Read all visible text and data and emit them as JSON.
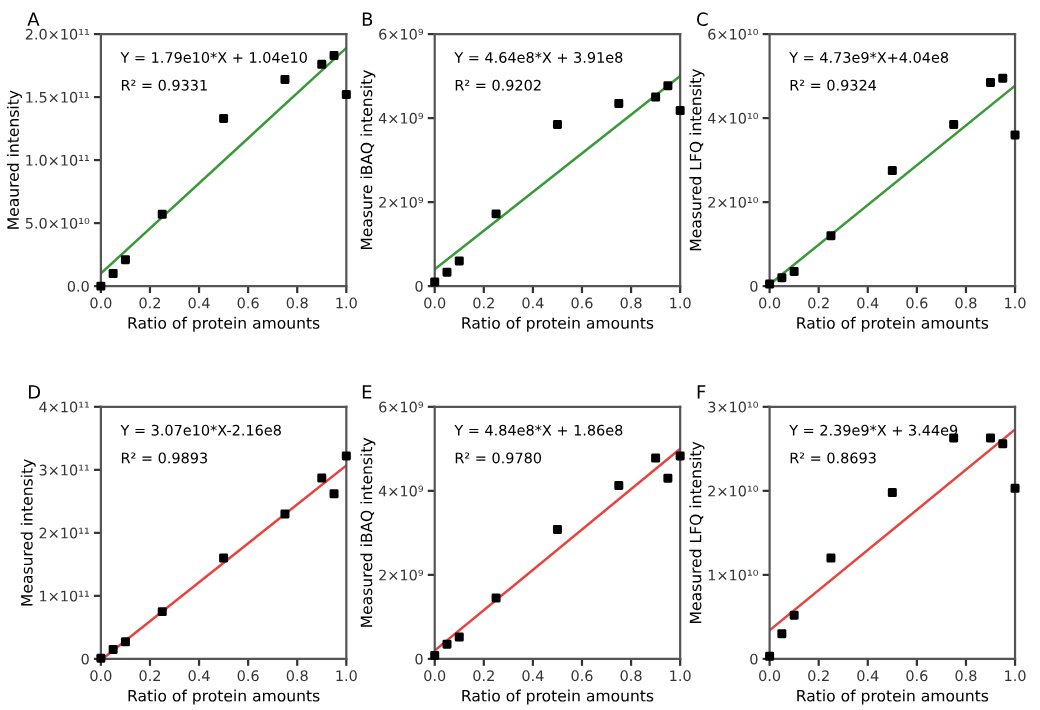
{
  "chart_data": [
    {
      "type": "scatter",
      "title": "A",
      "xlabel": "Ratio of protein amounts",
      "ylabel": "Meaured intensity",
      "annotations": [
        "Y = 1.79e10*X + 1.04e10",
        "R² = 0.9331"
      ],
      "grid": false,
      "legend": false,
      "x": [
        0,
        0.05,
        0.1,
        0.25,
        0.5,
        0.75,
        0.9,
        0.95,
        1.0
      ],
      "series": [
        {
          "marker": "square",
          "color": "#000000",
          "values": [
            0,
            10000000000.0,
            21000000000.0,
            57000000000.0,
            133000000000.0,
            164000000000.0,
            176000000000.0,
            183000000000.0,
            152000000000.0
          ]
        },
        {
          "type": "line",
          "color": "#3a9a3a",
          "x": [
            0,
            1
          ],
          "values": [
            10000000000.0,
            189000000000.0
          ]
        }
      ],
      "xlim": [
        0,
        1
      ],
      "xticks": [
        {
          "value": 0,
          "label": "0.0"
        },
        {
          "value": 0.2,
          "label": "0.2"
        },
        {
          "value": 0.4,
          "label": "0.4"
        },
        {
          "value": 0.6,
          "label": "0.6"
        },
        {
          "value": 0.8,
          "label": "0.8"
        },
        {
          "value": 1,
          "label": "1.0"
        }
      ],
      "ylim": [
        0,
        200000000000.0
      ],
      "yticks": [
        {
          "value": 0,
          "label": "0.0"
        },
        {
          "value": 50000000000.0,
          "label": "5.0×10¹⁰"
        },
        {
          "value": 100000000000.0,
          "label": "1.0×10¹¹"
        },
        {
          "value": 150000000000.0,
          "label": "1.5×10¹¹"
        },
        {
          "value": 200000000000.0,
          "label": "2.0×10¹¹"
        }
      ]
    },
    {
      "type": "scatter",
      "title": "B",
      "xlabel": "Ratio of protein amounts",
      "ylabel": "Measure iBAQ intensity",
      "annotations": [
        "Y = 4.64e8*X + 3.91e8",
        "R² = 0.9202"
      ],
      "grid": false,
      "legend": false,
      "x": [
        0,
        0.05,
        0.1,
        0.25,
        0.5,
        0.75,
        0.9,
        0.95,
        1.0
      ],
      "series": [
        {
          "marker": "square",
          "color": "#000000",
          "values": [
            100000000.0,
            330000000.0,
            600000000.0,
            1720000000.0,
            3850000000.0,
            4350000000.0,
            4500000000.0,
            4770000000.0,
            4180000000.0
          ]
        },
        {
          "type": "line",
          "color": "#3a9a3a",
          "x": [
            0,
            1
          ],
          "values": [
            400000000.0,
            5000000000.0
          ]
        }
      ],
      "xlim": [
        0,
        1
      ],
      "xticks": [
        {
          "value": 0,
          "label": "0.0"
        },
        {
          "value": 0.2,
          "label": "0.2"
        },
        {
          "value": 0.4,
          "label": "0.4"
        },
        {
          "value": 0.6,
          "label": "0.6"
        },
        {
          "value": 0.8,
          "label": "0.8"
        },
        {
          "value": 1,
          "label": "1.0"
        }
      ],
      "ylim": [
        0,
        6000000000.0
      ],
      "yticks": [
        0,
        {
          "value": 2000000000.0,
          "label": "2×10⁹"
        },
        {
          "value": 4000000000.0,
          "label": "4×10⁹"
        },
        {
          "value": 6000000000.0,
          "label": "6×10⁹"
        }
      ]
    },
    {
      "type": "scatter",
      "title": "C",
      "xlabel": "Ratio of protein amounts",
      "ylabel": "Measured LFQ intensity",
      "annotations": [
        "Y = 4.73e9*X+4.04e8",
        "R² = 0.9324"
      ],
      "grid": false,
      "legend": false,
      "x": [
        0,
        0.05,
        0.1,
        0.25,
        0.5,
        0.75,
        0.9,
        0.95,
        1.0
      ],
      "series": [
        {
          "marker": "square",
          "color": "#000000",
          "values": [
            500000000.0,
            2000000000.0,
            3500000000.0,
            12000000000.0,
            27500000000.0,
            38500000000.0,
            48500000000.0,
            49500000000.0,
            36000000000.0
          ]
        },
        {
          "type": "line",
          "color": "#3a9a3a",
          "x": [
            0,
            1
          ],
          "values": [
            400000000.0,
            47700000000.0
          ]
        }
      ],
      "xlim": [
        0,
        1
      ],
      "xticks": [
        {
          "value": 0,
          "label": "0.0"
        },
        {
          "value": 0.2,
          "label": "0.2"
        },
        {
          "value": 0.4,
          "label": "0.4"
        },
        {
          "value": 0.6,
          "label": "0.6"
        },
        {
          "value": 0.8,
          "label": "0.8"
        },
        {
          "value": 1,
          "label": "1.0"
        }
      ],
      "ylim": [
        0,
        60000000000.0
      ],
      "yticks": [
        0,
        {
          "value": 20000000000.0,
          "label": "2×10¹⁰"
        },
        {
          "value": 40000000000.0,
          "label": "4×10¹⁰"
        },
        {
          "value": 60000000000.0,
          "label": "6×10¹⁰"
        }
      ]
    },
    {
      "type": "scatter",
      "title": "D",
      "xlabel": "Ratio of protein amounts",
      "ylabel": "Measured intensity",
      "annotations": [
        "Y = 3.07e10*X-2.16e8",
        "R² = 0.9893"
      ],
      "grid": false,
      "legend": false,
      "x": [
        0,
        0.05,
        0.1,
        0.25,
        0.5,
        0.75,
        0.9,
        0.95,
        1.0
      ],
      "series": [
        {
          "marker": "square",
          "color": "#000000",
          "values": [
            1000000000.0,
            15000000000.0,
            27000000000.0,
            75000000000.0,
            160000000000.0,
            230000000000.0,
            287000000000.0,
            262000000000.0,
            322000000000.0
          ]
        },
        {
          "type": "line",
          "color": "#e8433f",
          "x": [
            0.01,
            1
          ],
          "values": [
            1000000000.0,
            307000000000.0
          ]
        }
      ],
      "xlim": [
        0,
        1
      ],
      "xticks": [
        {
          "value": 0,
          "label": "0.0"
        },
        {
          "value": 0.2,
          "label": "0.2"
        },
        {
          "value": 0.4,
          "label": "0.4"
        },
        {
          "value": 0.6,
          "label": "0.6"
        },
        {
          "value": 0.8,
          "label": "0.8"
        },
        {
          "value": 1,
          "label": "1.0"
        }
      ],
      "ylim": [
        0,
        400000000000.0
      ],
      "yticks": [
        0,
        {
          "value": 100000000000.0,
          "label": "1×10¹¹"
        },
        {
          "value": 200000000000.0,
          "label": "2×10¹¹"
        },
        {
          "value": 300000000000.0,
          "label": "3×10¹¹"
        },
        {
          "value": 400000000000.0,
          "label": "4×10¹¹"
        }
      ]
    },
    {
      "type": "scatter",
      "title": "E",
      "xlabel": "Ratio of protein amounts",
      "ylabel": "Measured iBAQ intensity",
      "annotations": [
        "Y = 4.84e8*X + 1.86e8",
        "R² = 0.9780"
      ],
      "grid": false,
      "legend": false,
      "x": [
        0,
        0.05,
        0.1,
        0.25,
        0.5,
        0.75,
        0.9,
        0.95,
        1.0
      ],
      "series": [
        {
          "marker": "square",
          "color": "#000000",
          "values": [
            80000000.0,
            350000000.0,
            520000000.0,
            1450000000.0,
            3080000000.0,
            4130000000.0,
            4780000000.0,
            4300000000.0,
            4830000000.0
          ]
        },
        {
          "type": "line",
          "color": "#e8433f",
          "x": [
            0,
            1
          ],
          "values": [
            200000000.0,
            5000000000.0
          ]
        }
      ],
      "xlim": [
        0,
        1
      ],
      "xticks": [
        {
          "value": 0,
          "label": "0.0"
        },
        {
          "value": 0.2,
          "label": "0.2"
        },
        {
          "value": 0.4,
          "label": "0.4"
        },
        {
          "value": 0.6,
          "label": "0.6"
        },
        {
          "value": 0.8,
          "label": "0.8"
        },
        {
          "value": 1,
          "label": "1.0"
        }
      ],
      "ylim": [
        0,
        6000000000.0
      ],
      "yticks": [
        0,
        {
          "value": 2000000000.0,
          "label": "2×10⁹"
        },
        {
          "value": 4000000000.0,
          "label": "4×10⁹"
        },
        {
          "value": 6000000000.0,
          "label": "6×10⁹"
        }
      ]
    },
    {
      "type": "scatter",
      "title": "F",
      "xlabel": "Ratio of protein amounts",
      "ylabel": "Measured LFQ intensity",
      "annotations": [
        "Y = 2.39e9*X + 3.44e9",
        "R² = 0.8693"
      ],
      "grid": false,
      "legend": false,
      "x": [
        0,
        0.05,
        0.1,
        0.25,
        0.5,
        0.75,
        0.9,
        0.95,
        1.0
      ],
      "series": [
        {
          "marker": "square",
          "color": "#000000",
          "values": [
            300000000.0,
            3000000000.0,
            5200000000.0,
            12000000000.0,
            19800000000.0,
            26300000000.0,
            26300000000.0,
            25600000000.0,
            20300000000.0
          ]
        },
        {
          "type": "line",
          "color": "#e8433f",
          "x": [
            0,
            1
          ],
          "values": [
            3400000000.0,
            27300000000.0
          ]
        }
      ],
      "xlim": [
        0,
        1
      ],
      "xticks": [
        {
          "value": 0,
          "label": "0.0"
        },
        {
          "value": 0.2,
          "label": "0.2"
        },
        {
          "value": 0.4,
          "label": "0.4"
        },
        {
          "value": 0.6,
          "label": "0.6"
        },
        {
          "value": 0.8,
          "label": "0.8"
        },
        {
          "value": 1,
          "label": "1.0"
        }
      ],
      "ylim": [
        0,
        30000000000.0
      ],
      "yticks": [
        0,
        {
          "value": 10000000000.0,
          "label": "1×10¹⁰"
        },
        {
          "value": 20000000000.0,
          "label": "2×10¹⁰"
        },
        {
          "value": 30000000000.0,
          "label": "3×10¹⁰"
        }
      ]
    }
  ]
}
